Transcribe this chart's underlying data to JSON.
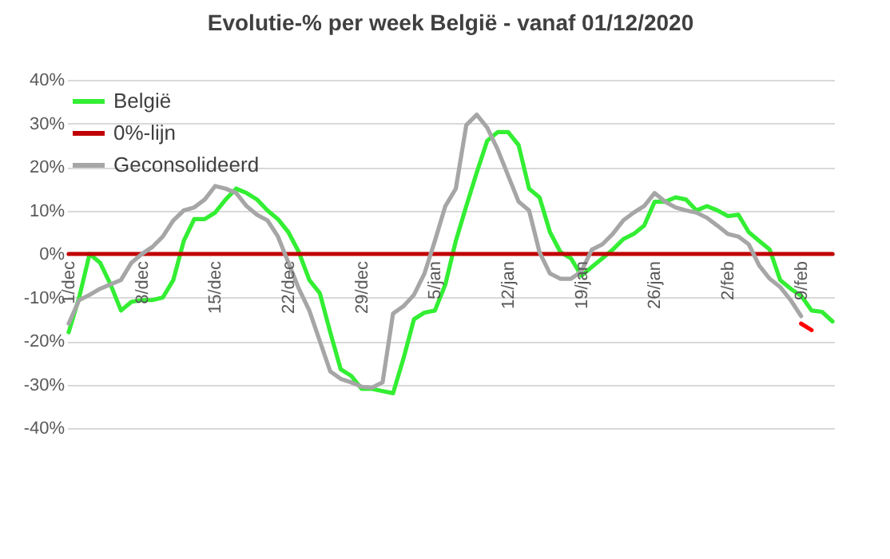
{
  "chart_data": {
    "type": "line",
    "title": "Evolutie-% per week België - vanaf 01/12/2020",
    "categories": [
      "1/dec",
      null,
      null,
      null,
      null,
      null,
      null,
      "8/dec",
      null,
      null,
      null,
      null,
      null,
      null,
      "15/dec",
      null,
      null,
      null,
      null,
      null,
      null,
      "22/dec",
      null,
      null,
      null,
      null,
      null,
      null,
      "29/dec",
      null,
      null,
      null,
      null,
      null,
      null,
      "5/jan",
      null,
      null,
      null,
      null,
      null,
      null,
      "12/jan",
      null,
      null,
      null,
      null,
      null,
      null,
      "19/jan",
      null,
      null,
      null,
      null,
      null,
      null,
      "26/jan",
      null,
      null,
      null,
      null,
      null,
      null,
      "2/feb",
      null,
      null,
      null,
      null,
      null,
      null,
      "9/feb",
      null,
      null,
      null
    ],
    "series": [
      {
        "name": "België",
        "color": "#33ee33",
        "values": [
          -18,
          -10,
          0,
          -2,
          -7,
          -13,
          -11,
          -10.6,
          -10.6,
          -10,
          -6,
          3,
          8,
          8,
          9.5,
          12.5,
          15,
          14,
          12.5,
          10,
          8,
          5,
          0.4,
          -6,
          -9,
          -18,
          -26.5,
          -28,
          -31,
          -31,
          -31.5,
          -32,
          -24,
          -15,
          -13.5,
          -13,
          -7,
          3,
          11,
          18.7,
          26,
          28,
          28,
          25,
          15,
          13,
          5,
          0.4,
          -1,
          -5,
          -3,
          -1,
          1,
          3.4,
          4.6,
          6.5,
          12,
          12,
          13,
          12.5,
          10,
          11,
          10,
          8.7,
          9,
          5,
          3,
          1,
          -6,
          -8,
          -9.6,
          -13,
          -13.3,
          -15.5
        ]
      },
      {
        "name": "0%-lijn",
        "color": "#c00000",
        "values": [
          0,
          0,
          0,
          0,
          0,
          0,
          0,
          0,
          0,
          0,
          0,
          0,
          0,
          0,
          0,
          0,
          0,
          0,
          0,
          0,
          0,
          0,
          0,
          0,
          0,
          0,
          0,
          0,
          0,
          0,
          0,
          0,
          0,
          0,
          0,
          0,
          0,
          0,
          0,
          0,
          0,
          0,
          0,
          0,
          0,
          0,
          0,
          0,
          0,
          0,
          0,
          0,
          0,
          0,
          0,
          0,
          0,
          0,
          0,
          0,
          0,
          0,
          0,
          0,
          0,
          0,
          0,
          0,
          0,
          0,
          0,
          0,
          0,
          0
        ]
      },
      {
        "name": "Geconsolideerd",
        "color": "#a6a6a6",
        "values": [
          -16,
          -10.6,
          -9.4,
          -8,
          -7,
          -6,
          -2,
          0,
          1.6,
          4,
          7.7,
          10,
          10.7,
          12.5,
          15.6,
          15,
          14,
          11,
          9,
          7.7,
          4,
          -2,
          -8,
          -13,
          -20,
          -27,
          -28.7,
          -29.5,
          -30.5,
          -30.7,
          -29.5,
          -13.7,
          -12,
          -9.4,
          -4.5,
          3,
          11,
          15,
          29.6,
          32,
          29,
          24,
          18,
          12,
          10,
          0.4,
          -4.5,
          -5.7,
          -5.7,
          -4,
          1,
          2.2,
          4.6,
          7.7,
          9.5,
          11,
          14,
          12,
          10.7,
          10,
          9.5,
          8.3,
          6.5,
          4.6,
          4,
          2.2,
          -2.7,
          -5.7,
          -7.6,
          -10.6,
          -14.3,
          null,
          null,
          null
        ]
      },
      {
        "color": "#ff0000",
        "values": [
          null,
          null,
          null,
          null,
          null,
          null,
          null,
          null,
          null,
          null,
          null,
          null,
          null,
          null,
          null,
          null,
          null,
          null,
          null,
          null,
          null,
          null,
          null,
          null,
          null,
          null,
          null,
          null,
          null,
          null,
          null,
          null,
          null,
          null,
          null,
          null,
          null,
          null,
          null,
          null,
          null,
          null,
          null,
          null,
          null,
          null,
          null,
          null,
          null,
          null,
          null,
          null,
          null,
          null,
          null,
          null,
          null,
          null,
          null,
          null,
          null,
          null,
          null,
          null,
          null,
          null,
          null,
          null,
          null,
          null,
          -16,
          -17.5,
          null,
          null
        ]
      }
    ],
    "ylim": [
      -40,
      40
    ],
    "yticks": [
      {
        "value": -40,
        "label": "-40%"
      },
      {
        "value": -30,
        "label": "-30%"
      },
      {
        "value": -20,
        "label": "-20%"
      },
      {
        "value": -10,
        "label": "-10%"
      },
      {
        "value": 0,
        "label": "0%"
      },
      {
        "value": 10,
        "label": "10%"
      },
      {
        "value": 20,
        "label": "20%"
      },
      {
        "value": 30,
        "label": "30%"
      },
      {
        "value": 40,
        "label": "40%"
      }
    ],
    "grid": "y",
    "legend": "top left",
    "marker": "none",
    "line_style": "solid"
  }
}
